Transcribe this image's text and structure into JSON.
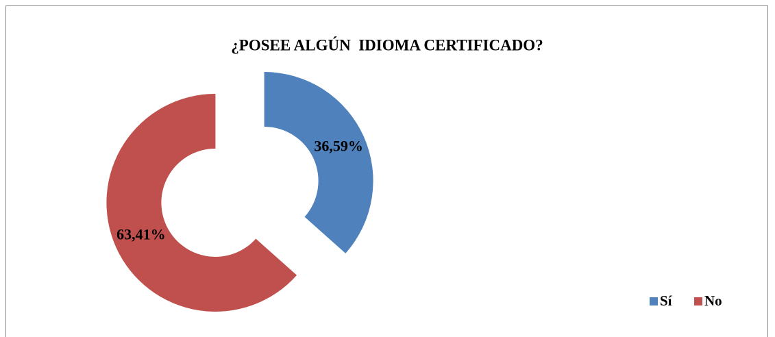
{
  "chart_data": {
    "type": "pie",
    "donut": true,
    "title": "¿POSEE ALGÚN  IDIOMA CERTIFICADO?",
    "categories": [
      "Sí",
      "No"
    ],
    "values": [
      36.59,
      63.41
    ],
    "value_labels": [
      "36,59%",
      "63,41%"
    ],
    "colors": [
      "#4f81bd",
      "#c0504d"
    ],
    "legend": "bottom-right"
  }
}
